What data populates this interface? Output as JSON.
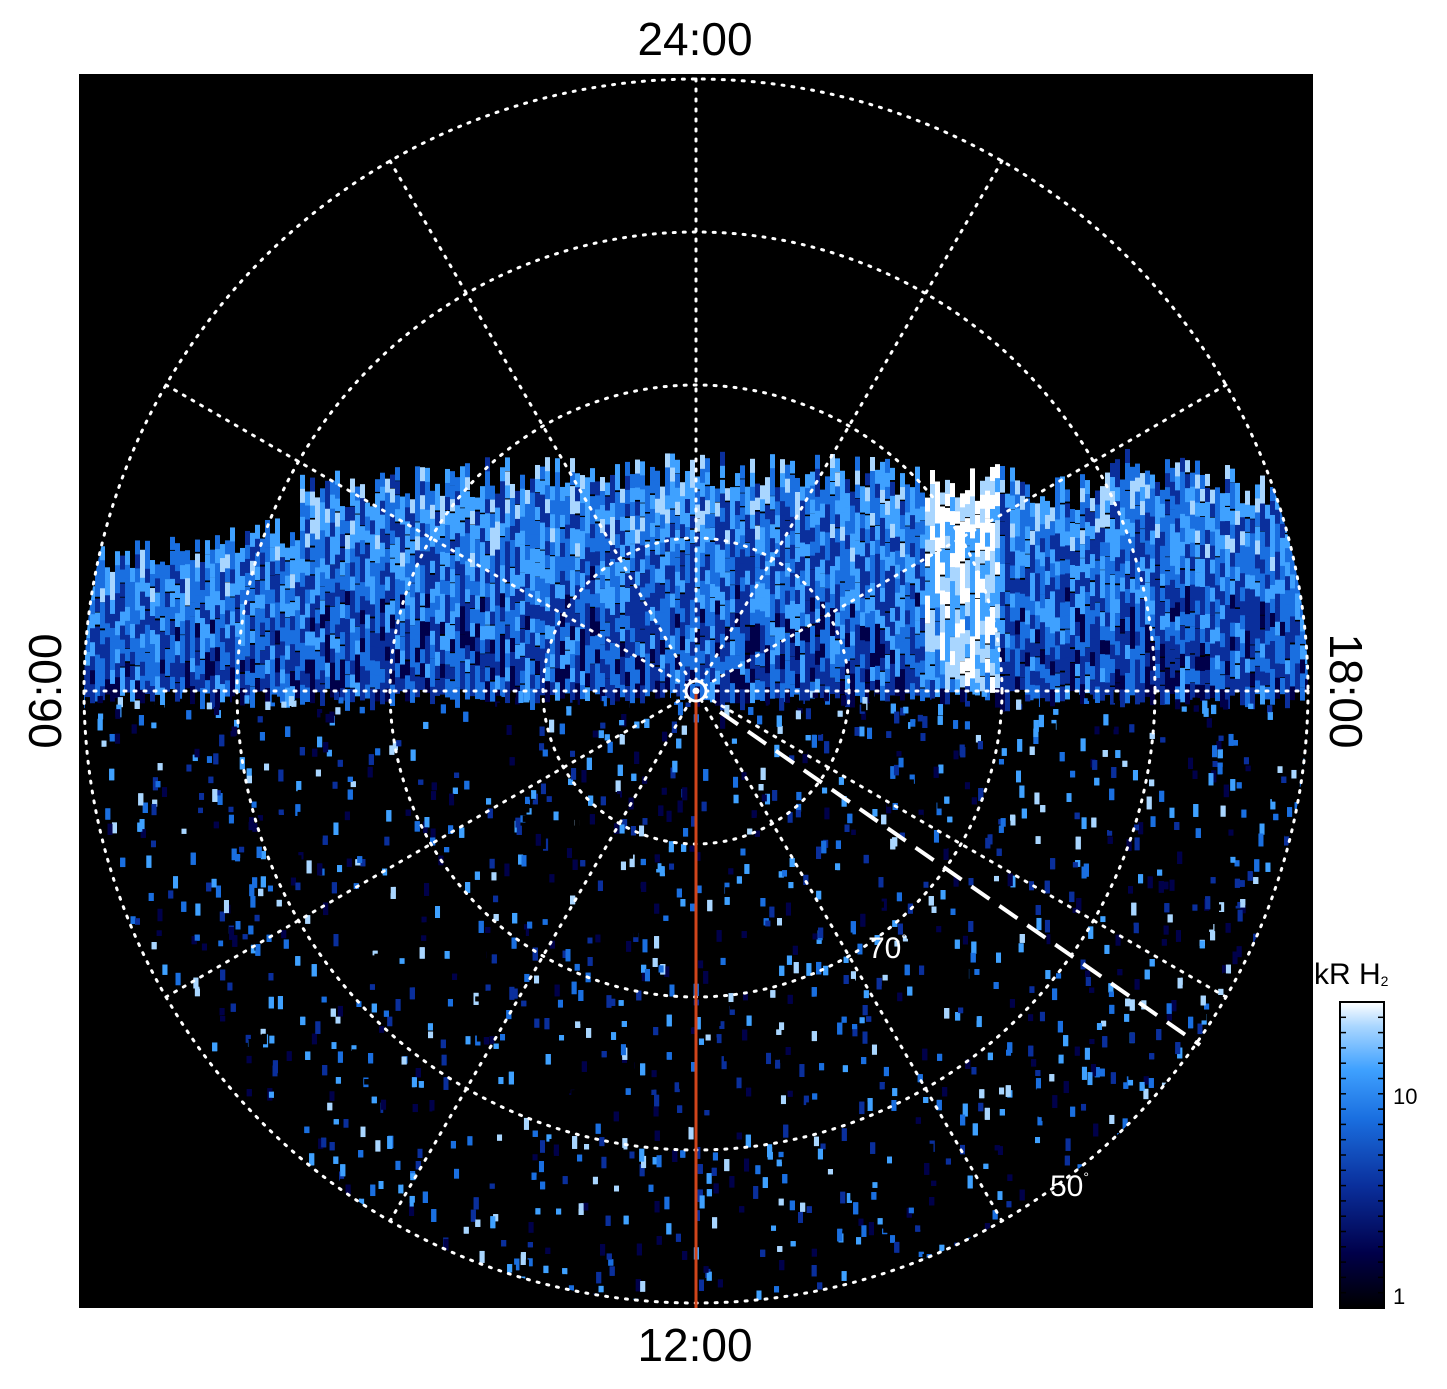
{
  "labels": {
    "top": "24:00",
    "bottom": "12:00",
    "left": "06:00",
    "right": "18:00",
    "lat_70": "70",
    "lat_50": "50",
    "degree": "°"
  },
  "colorbar": {
    "title_main": "kR H",
    "title_sub": "2",
    "tick_mid": "10",
    "tick_low": "1",
    "scale": "log",
    "range": [
      1,
      25
    ]
  },
  "colors": {
    "background": "#000000",
    "frame": "#ffffff",
    "grid": "#ffffff",
    "meridian_line": "#d0451b",
    "colormap": [
      "#000000",
      "#00004a",
      "#0a2f9c",
      "#1a6fe0",
      "#3fa1ff",
      "#a9d6ff",
      "#ffffff"
    ]
  },
  "projection": {
    "type": "polar",
    "latitude_rings_deg": [
      80,
      70,
      60,
      50
    ],
    "local_time_spokes_hours": 12,
    "emission_coverage": "nightside band plus noisy dayside fill"
  }
}
